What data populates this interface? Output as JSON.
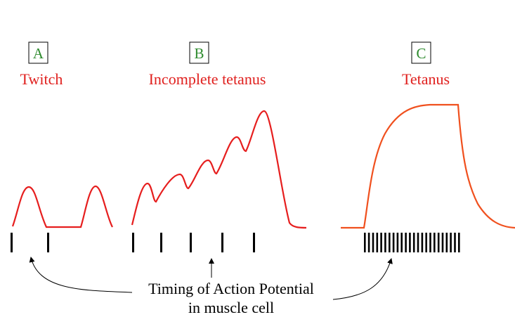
{
  "panels": [
    {
      "letter": "A",
      "title": "Twitch"
    },
    {
      "letter": "B",
      "title": "Incomplete tetanus"
    },
    {
      "letter": "C",
      "title": "Tetanus"
    }
  ],
  "caption": {
    "line1": "Timing of Action Potential",
    "line2": "in muscle cell"
  },
  "colors": {
    "letter": "#2e8b2e",
    "title": "#e0201e",
    "curve_red": "#e61e1e",
    "curve_orange": "#f0501e",
    "ticks": "#000000"
  }
}
